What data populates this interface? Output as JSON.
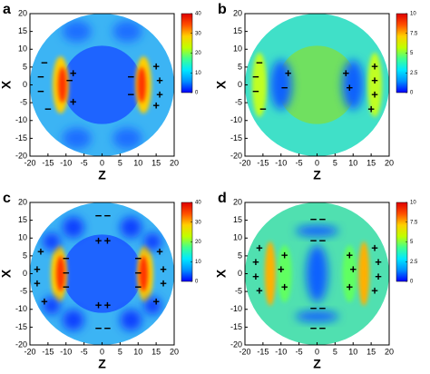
{
  "chart_data": [
    {
      "type": "heatmap",
      "panel": "a",
      "xlabel": "Z",
      "ylabel": "X",
      "xlim": [
        -20,
        20
      ],
      "ylim": [
        -20,
        20
      ],
      "xticks": [
        -20,
        -15,
        -10,
        -5,
        0,
        5,
        10,
        15,
        20
      ],
      "yticks": [
        -20,
        -15,
        -10,
        -5,
        0,
        5,
        10,
        15,
        20
      ],
      "colorbar": {
        "lim": [
          0,
          40
        ],
        "ticks": [
          0,
          10,
          20,
          30,
          40
        ]
      },
      "colormap": [
        "#0000ff",
        "#0090ff",
        "#00e8ff",
        "#40ff90",
        "#c0ff00",
        "#ffd000",
        "#ff5000",
        "#e00000"
      ],
      "charges": {
        "plus": "+",
        "minus": "−"
      }
    },
    {
      "type": "heatmap",
      "panel": "b",
      "xlabel": "Z",
      "ylabel": "X",
      "xlim": [
        -20,
        20
      ],
      "ylim": [
        -20,
        20
      ],
      "xticks": [
        -20,
        -15,
        -10,
        -5,
        0,
        5,
        10,
        15,
        20
      ],
      "yticks": [
        -20,
        -15,
        -10,
        -5,
        0,
        5,
        10,
        15,
        20
      ],
      "colorbar": {
        "lim": [
          0,
          10
        ],
        "ticks": [
          0,
          2.5,
          5,
          7.5,
          10
        ]
      },
      "colormap": [
        "#0000ff",
        "#0090ff",
        "#00e8ff",
        "#40ff90",
        "#c0ff00",
        "#ffd000",
        "#ff5000",
        "#e00000"
      ],
      "charges": {
        "plus": "+",
        "minus": "−"
      }
    },
    {
      "type": "heatmap",
      "panel": "c",
      "xlabel": "Z",
      "ylabel": "X",
      "xlim": [
        -20,
        20
      ],
      "ylim": [
        -20,
        20
      ],
      "xticks": [
        -20,
        -15,
        -10,
        -5,
        0,
        5,
        10,
        15,
        20
      ],
      "yticks": [
        -20,
        -15,
        -10,
        -5,
        0,
        5,
        10,
        15,
        20
      ],
      "colorbar": {
        "lim": [
          0,
          40
        ],
        "ticks": [
          0,
          10,
          20,
          30,
          40
        ]
      },
      "colormap": [
        "#0000ff",
        "#0090ff",
        "#00e8ff",
        "#40ff90",
        "#c0ff00",
        "#ffd000",
        "#ff5000",
        "#e00000"
      ],
      "charges": {
        "plus": "+",
        "minus": "−"
      }
    },
    {
      "type": "heatmap",
      "panel": "d",
      "xlabel": "Z",
      "ylabel": "X",
      "xlim": [
        -20,
        20
      ],
      "ylim": [
        -20,
        20
      ],
      "xticks": [
        -20,
        -15,
        -10,
        -5,
        0,
        5,
        10,
        15,
        20
      ],
      "yticks": [
        -20,
        -15,
        -10,
        -5,
        0,
        5,
        10,
        15,
        20
      ],
      "colorbar": {
        "lim": [
          0,
          10
        ],
        "ticks": [
          0,
          2.5,
          5,
          7.5,
          10
        ]
      },
      "colormap": [
        "#0000ff",
        "#0090ff",
        "#00e8ff",
        "#40ff90",
        "#c0ff00",
        "#ffd000",
        "#ff5000",
        "#e00000"
      ],
      "charges": {
        "plus": "+",
        "minus": "−"
      }
    }
  ]
}
